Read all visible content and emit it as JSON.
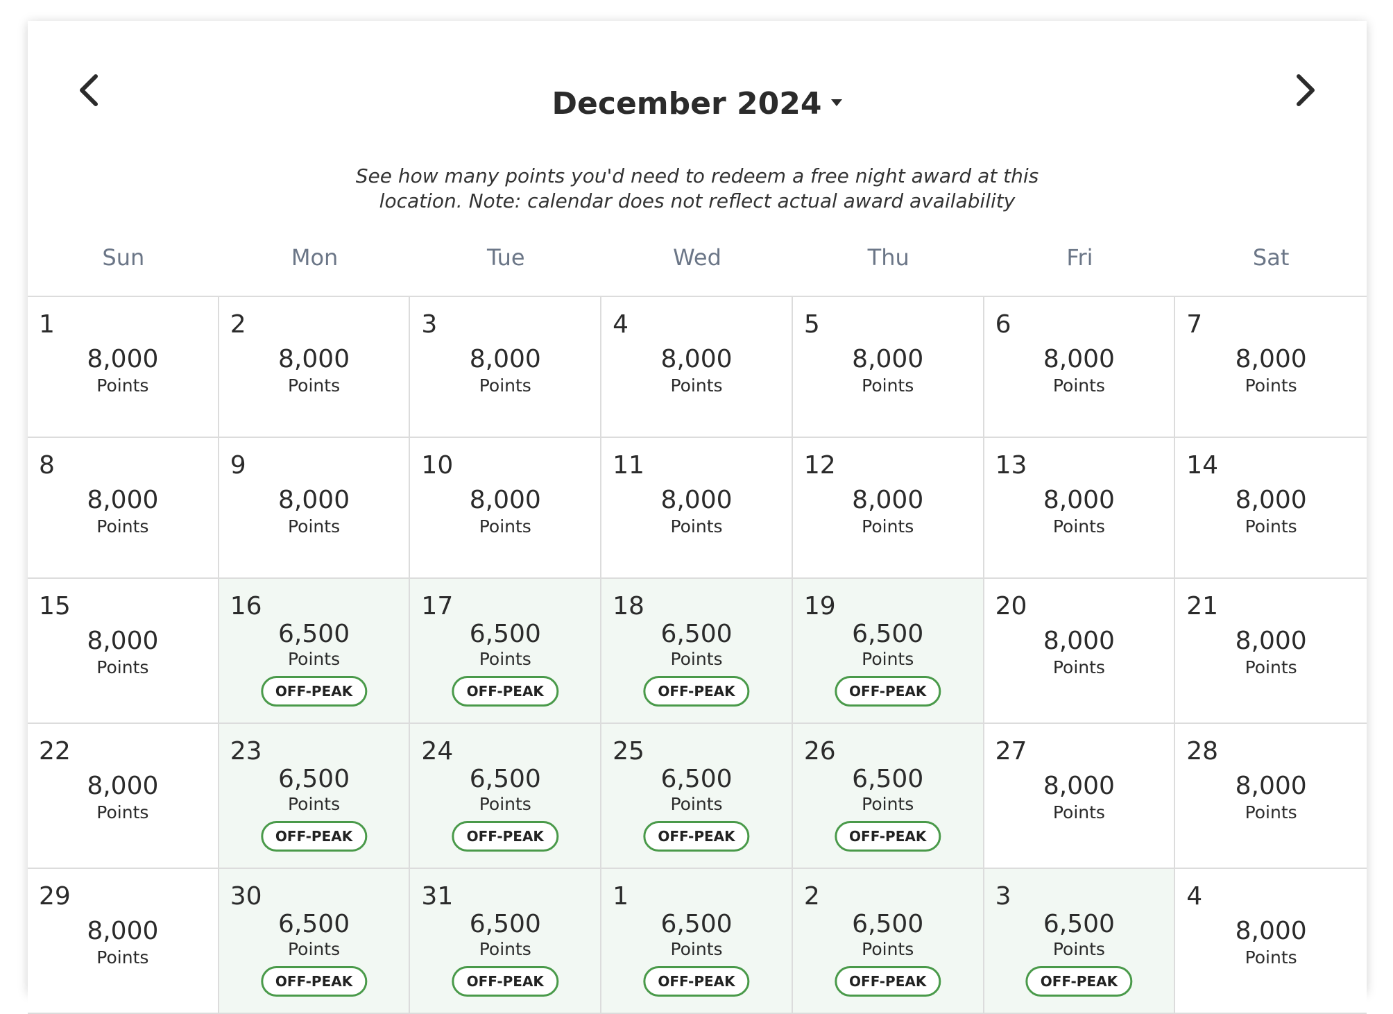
{
  "calendar": {
    "month_label": "December 2024",
    "note_line1": "See how many points you'd need to redeem a free night award at this",
    "note_line2": "location. Note: calendar does not reflect actual award availability",
    "prev_icon": "chevron-left-icon",
    "next_icon": "chevron-right-icon",
    "weekdays": [
      "Sun",
      "Mon",
      "Tue",
      "Wed",
      "Thu",
      "Fri",
      "Sat"
    ],
    "points_label": "Points",
    "offpeak_label": "OFF-PEAK",
    "colors": {
      "offpeak_bg": "#f2f8f3",
      "offpeak_border": "#4a9a4a",
      "weekday_text": "#6b7687"
    },
    "days": [
      {
        "day": "1",
        "points": "8,000",
        "offpeak": false
      },
      {
        "day": "2",
        "points": "8,000",
        "offpeak": false
      },
      {
        "day": "3",
        "points": "8,000",
        "offpeak": false
      },
      {
        "day": "4",
        "points": "8,000",
        "offpeak": false
      },
      {
        "day": "5",
        "points": "8,000",
        "offpeak": false
      },
      {
        "day": "6",
        "points": "8,000",
        "offpeak": false
      },
      {
        "day": "7",
        "points": "8,000",
        "offpeak": false
      },
      {
        "day": "8",
        "points": "8,000",
        "offpeak": false
      },
      {
        "day": "9",
        "points": "8,000",
        "offpeak": false
      },
      {
        "day": "10",
        "points": "8,000",
        "offpeak": false
      },
      {
        "day": "11",
        "points": "8,000",
        "offpeak": false
      },
      {
        "day": "12",
        "points": "8,000",
        "offpeak": false
      },
      {
        "day": "13",
        "points": "8,000",
        "offpeak": false
      },
      {
        "day": "14",
        "points": "8,000",
        "offpeak": false
      },
      {
        "day": "15",
        "points": "8,000",
        "offpeak": false
      },
      {
        "day": "16",
        "points": "6,500",
        "offpeak": true
      },
      {
        "day": "17",
        "points": "6,500",
        "offpeak": true
      },
      {
        "day": "18",
        "points": "6,500",
        "offpeak": true
      },
      {
        "day": "19",
        "points": "6,500",
        "offpeak": true
      },
      {
        "day": "20",
        "points": "8,000",
        "offpeak": false
      },
      {
        "day": "21",
        "points": "8,000",
        "offpeak": false
      },
      {
        "day": "22",
        "points": "8,000",
        "offpeak": false
      },
      {
        "day": "23",
        "points": "6,500",
        "offpeak": true
      },
      {
        "day": "24",
        "points": "6,500",
        "offpeak": true
      },
      {
        "day": "25",
        "points": "6,500",
        "offpeak": true
      },
      {
        "day": "26",
        "points": "6,500",
        "offpeak": true
      },
      {
        "day": "27",
        "points": "8,000",
        "offpeak": false
      },
      {
        "day": "28",
        "points": "8,000",
        "offpeak": false
      },
      {
        "day": "29",
        "points": "8,000",
        "offpeak": false
      },
      {
        "day": "30",
        "points": "6,500",
        "offpeak": true
      },
      {
        "day": "31",
        "points": "6,500",
        "offpeak": true
      },
      {
        "day": "1",
        "points": "6,500",
        "offpeak": true
      },
      {
        "day": "2",
        "points": "6,500",
        "offpeak": true
      },
      {
        "day": "3",
        "points": "6,500",
        "offpeak": true
      },
      {
        "day": "4",
        "points": "8,000",
        "offpeak": false
      }
    ]
  }
}
